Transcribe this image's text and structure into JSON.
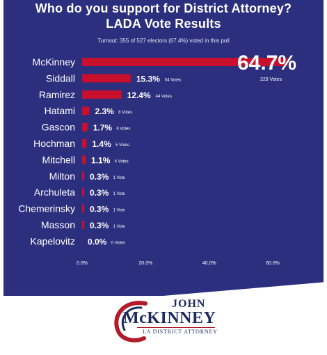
{
  "header": {
    "title_line1": "Who do you support for District Attorney?",
    "title_line2": "LADA Vote Results",
    "turnout": "Turnout: 355 of 527 electors (67.4%) voted in this poll"
  },
  "chart_data": {
    "type": "bar",
    "orientation": "horizontal",
    "title": "Who do you support for District Attorney? LADA Vote Results",
    "categories": [
      "McKinney",
      "Siddall",
      "Ramirez",
      "Hatami",
      "Gascon",
      "Hochman",
      "Mitchell",
      "Milton",
      "Archuleta",
      "Chemerinsky",
      "Masson",
      "Kapelovitz"
    ],
    "values": [
      64.7,
      15.3,
      12.4,
      2.3,
      1.7,
      1.4,
      1.1,
      0.3,
      0.3,
      0.3,
      0.3,
      0.0
    ],
    "value_labels": [
      "64.7%",
      "15.3%",
      "12.4%",
      "2.3%",
      "1.7%",
      "1.4%",
      "1.1%",
      "0.3%",
      "0.3%",
      "0.3%",
      "0.3%",
      "0.0%"
    ],
    "vote_labels": [
      "229 Votes",
      "54 Votes",
      "44 Votes",
      "8 Votes",
      "6 Votes",
      "5 Votes",
      "4 Votes",
      "1 Vote",
      "1 Vote",
      "1 Vote",
      "1 Vote",
      "0 Votes"
    ],
    "xlim": [
      0,
      60
    ],
    "xticks": [
      0,
      20,
      40,
      60
    ],
    "xtick_labels": [
      "0.0%",
      "20.0%",
      "40.0%",
      "60.0%"
    ],
    "bar_color": "#c8102e",
    "background_color": "#2c2f7e",
    "text_color": "#ffffff",
    "grid": false
  },
  "logo": {
    "line1": "JOHN",
    "line2": "McKINNEY",
    "line3": "LA DISTRICT ATTORNEY",
    "colors": {
      "navy": "#1c2a5e",
      "red": "#b31b2b"
    }
  }
}
